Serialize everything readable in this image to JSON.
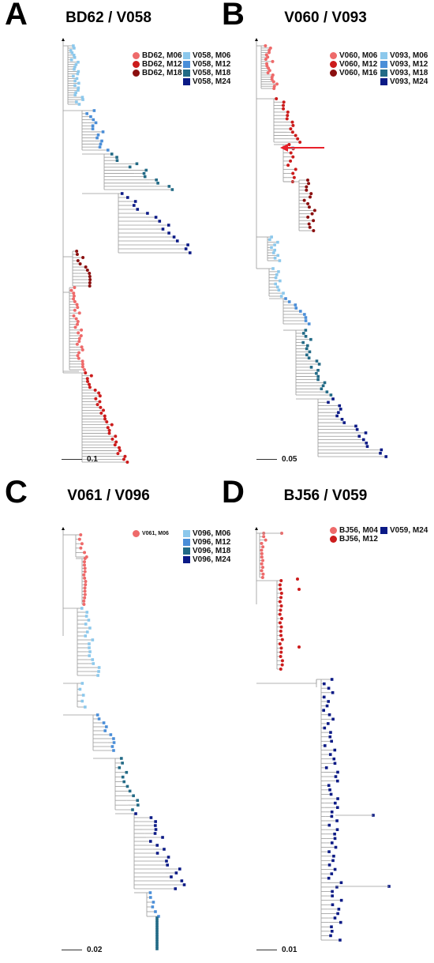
{
  "colors": {
    "red_light": "#ee6a6a",
    "red_mid": "#cc1c1c",
    "red_dark": "#8b0f0f",
    "blue_light": "#8cc8ec",
    "blue_mid": "#4a8ed8",
    "blue_teal": "#226a86",
    "blue_dark": "#0b1a86",
    "branch": "#9a9a9a"
  },
  "panels": [
    {
      "id": "A",
      "letter": "A",
      "title": "BD62 / V058",
      "scale_label": "0.1",
      "legend_left": [
        {
          "label": "BD62, M06",
          "color": "red_light"
        },
        {
          "label": "BD62, M12",
          "color": "red_mid"
        },
        {
          "label": "BD62, M18",
          "color": "red_dark"
        }
      ],
      "legend_right": [
        {
          "label": "V058, M06",
          "color": "blue_light"
        },
        {
          "label": "V058, M12",
          "color": "blue_mid"
        },
        {
          "label": "V058, M18",
          "color": "blue_teal"
        },
        {
          "label": "V058, M24",
          "color": "blue_dark"
        }
      ]
    },
    {
      "id": "B",
      "letter": "B",
      "title": "V060 / V093",
      "scale_label": "0.05",
      "legend_left": [
        {
          "label": "V060, M06",
          "color": "red_light"
        },
        {
          "label": "V060, M12",
          "color": "red_mid"
        },
        {
          "label": "V060, M16",
          "color": "red_dark"
        }
      ],
      "legend_right": [
        {
          "label": "V093, M06",
          "color": "blue_light"
        },
        {
          "label": "V093, M12",
          "color": "blue_mid"
        },
        {
          "label": "V093, M18",
          "color": "blue_teal"
        },
        {
          "label": "V093, M24",
          "color": "blue_dark"
        }
      ]
    },
    {
      "id": "C",
      "letter": "C",
      "title": "V061 / V096",
      "scale_label": "0.02",
      "legend_left": [
        {
          "label": "V061, M06",
          "color": "red_light"
        }
      ],
      "legend_right": [
        {
          "label": "V096, M06",
          "color": "blue_light"
        },
        {
          "label": "V096, M12",
          "color": "blue_mid"
        },
        {
          "label": "V096, M18",
          "color": "blue_teal"
        },
        {
          "label": "V096, M24",
          "color": "blue_dark"
        }
      ]
    },
    {
      "id": "D",
      "letter": "D",
      "title": "BJ56 / V059",
      "scale_label": "0.01",
      "legend_left": [
        {
          "label": "BJ56, M04",
          "color": "red_light"
        },
        {
          "label": "BJ56, M12",
          "color": "red_mid"
        }
      ],
      "legend_right": [
        {
          "label": "V059, M24",
          "color": "blue_dark"
        }
      ]
    }
  ]
}
